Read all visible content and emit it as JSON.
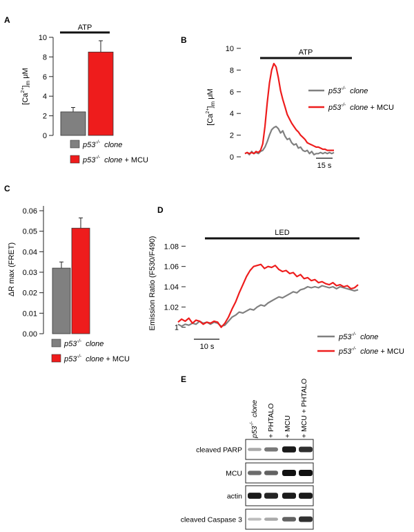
{
  "panels": {
    "A": "A",
    "B": "B",
    "C": "C",
    "D": "D",
    "E": "E"
  },
  "legend": {
    "genotype": "p53",
    "superscript": "-/-",
    "clone": "clone",
    "plus_mcu": "+ MCU"
  },
  "chart_data": [
    {
      "panel": "A",
      "type": "bar",
      "title": "",
      "ylabel_parts": [
        "[Ca",
        "2+",
        "]",
        "m",
        " μM"
      ],
      "ylim": [
        0,
        10
      ],
      "yticks": [
        0,
        2,
        4,
        6,
        8,
        10
      ],
      "annotation": "ATP",
      "series": [
        {
          "name": "p53-/- clone",
          "color": "#808080",
          "value": 2.4,
          "error": 0.45
        },
        {
          "name": "p53-/- clone + MCU",
          "color": "#ee1c1c",
          "value": 8.5,
          "error": 1.15
        }
      ]
    },
    {
      "panel": "B",
      "type": "line",
      "ylabel_parts": [
        "[Ca",
        "2+",
        "]",
        "m",
        " μM"
      ],
      "ylim": [
        0,
        10
      ],
      "yticks": [
        0,
        2,
        4,
        6,
        8,
        10
      ],
      "annotation": "ATP",
      "scalebar": "15 s",
      "x": [
        0,
        1,
        2,
        3,
        4,
        5,
        6,
        7,
        8,
        9,
        10,
        11,
        12,
        13,
        14,
        15,
        16,
        17,
        18,
        19,
        20,
        21,
        22,
        23,
        24,
        25,
        26,
        27,
        28,
        29,
        30,
        31,
        32,
        33,
        34,
        35,
        36,
        37,
        38,
        39,
        40
      ],
      "series": [
        {
          "name": "p53-/- clone",
          "color": "#808080",
          "values": [
            0.3,
            0.4,
            0.2,
            0.5,
            0.3,
            0.4,
            0.3,
            0.5,
            0.6,
            0.9,
            1.4,
            2.0,
            2.5,
            2.7,
            2.8,
            2.6,
            2.2,
            2.4,
            1.9,
            1.6,
            1.7,
            1.3,
            1.1,
            1.2,
            0.8,
            0.9,
            0.6,
            0.5,
            0.6,
            0.3,
            0.5,
            0.2,
            0.3,
            0.3,
            0.4,
            0.3,
            0.4,
            0.3,
            0.4,
            0.3,
            0.4
          ]
        },
        {
          "name": "p53-/- clone + MCU",
          "color": "#ee1c1c",
          "values": [
            0.3,
            0.4,
            0.3,
            0.4,
            0.3,
            0.5,
            0.4,
            0.6,
            1.2,
            2.8,
            5.0,
            6.8,
            8.0,
            8.6,
            8.3,
            7.3,
            6.1,
            5.3,
            4.6,
            3.9,
            3.5,
            3.1,
            2.8,
            2.5,
            2.3,
            2.0,
            1.8,
            1.6,
            1.3,
            1.2,
            1.1,
            1.0,
            0.9,
            0.9,
            0.8,
            0.7,
            0.7,
            0.6,
            0.6,
            0.6,
            0.6
          ]
        }
      ]
    },
    {
      "panel": "C",
      "type": "bar",
      "ylabel": "ΔR max (FRET)",
      "ylim": [
        0,
        0.06
      ],
      "yticks": [
        "0.00",
        "0.01",
        "0.02",
        "0.03",
        "0.04",
        "0.05",
        "0.06"
      ],
      "series": [
        {
          "name": "p53-/- clone",
          "color": "#808080",
          "value": 0.032,
          "error": 0.003
        },
        {
          "name": "p53-/- clone + MCU",
          "color": "#ee1c1c",
          "value": 0.0515,
          "error": 0.005
        }
      ]
    },
    {
      "panel": "D",
      "type": "line",
      "ylabel": "Emission Ratio (F530/F490)",
      "ylim": [
        0.995,
        1.085
      ],
      "yticks": [
        "1",
        "1.02",
        "1.04",
        "1.06",
        "1.08"
      ],
      "annotation": "LED",
      "scalebar": "10 s",
      "x": [
        0,
        1,
        2,
        3,
        4,
        5,
        6,
        7,
        8,
        9,
        10,
        11,
        12,
        13,
        14,
        15,
        16,
        17,
        18,
        19,
        20,
        21,
        22,
        23,
        24,
        25,
        26,
        27,
        28,
        29,
        30,
        31,
        32,
        33,
        34,
        35,
        36,
        37,
        38,
        39,
        40,
        41,
        42,
        43,
        44,
        45,
        46,
        47,
        48,
        49,
        50
      ],
      "series": [
        {
          "name": "p53-/- clone",
          "color": "#808080",
          "values": [
            1.003,
            1.001,
            1.003,
            1.002,
            1.004,
            1.003,
            1.006,
            1.004,
            1.005,
            1.003,
            1.005,
            1.004,
            1.001,
            1.002,
            1.006,
            1.01,
            1.012,
            1.015,
            1.014,
            1.016,
            1.018,
            1.017,
            1.02,
            1.022,
            1.021,
            1.024,
            1.026,
            1.028,
            1.03,
            1.029,
            1.031,
            1.033,
            1.035,
            1.034,
            1.037,
            1.038,
            1.04,
            1.039,
            1.04,
            1.039,
            1.041,
            1.04,
            1.039,
            1.04,
            1.038,
            1.04,
            1.039,
            1.038,
            1.037,
            1.036,
            1.037
          ]
        },
        {
          "name": "p53-/- clone + MCU",
          "color": "#ee1c1c",
          "values": [
            1.005,
            1.008,
            1.006,
            1.009,
            1.004,
            1.007,
            1.006,
            1.003,
            1.005,
            1.004,
            1.006,
            1.005,
            1.0,
            1.004,
            1.01,
            1.018,
            1.025,
            1.034,
            1.042,
            1.05,
            1.056,
            1.06,
            1.061,
            1.062,
            1.058,
            1.06,
            1.059,
            1.061,
            1.057,
            1.055,
            1.056,
            1.053,
            1.054,
            1.05,
            1.052,
            1.048,
            1.049,
            1.046,
            1.047,
            1.044,
            1.045,
            1.043,
            1.042,
            1.044,
            1.041,
            1.042,
            1.04,
            1.041,
            1.038,
            1.039,
            1.042
          ]
        }
      ]
    },
    {
      "panel": "E",
      "type": "table",
      "lanes": [
        "clone",
        "+ PHTALO",
        "+ MCU",
        "+ MCU + PHTALO"
      ],
      "rows": [
        {
          "label": "cleaved PARP",
          "intensities": [
            0.25,
            0.5,
            0.95,
            0.85
          ]
        },
        {
          "label": "MCU",
          "intensities": [
            0.55,
            0.6,
            1.0,
            1.0
          ]
        },
        {
          "label": "actin",
          "intensities": [
            0.95,
            0.9,
            0.95,
            0.95
          ]
        },
        {
          "label": "cleaved Caspase 3",
          "intensities": [
            0.15,
            0.25,
            0.6,
            0.85
          ]
        }
      ]
    }
  ]
}
